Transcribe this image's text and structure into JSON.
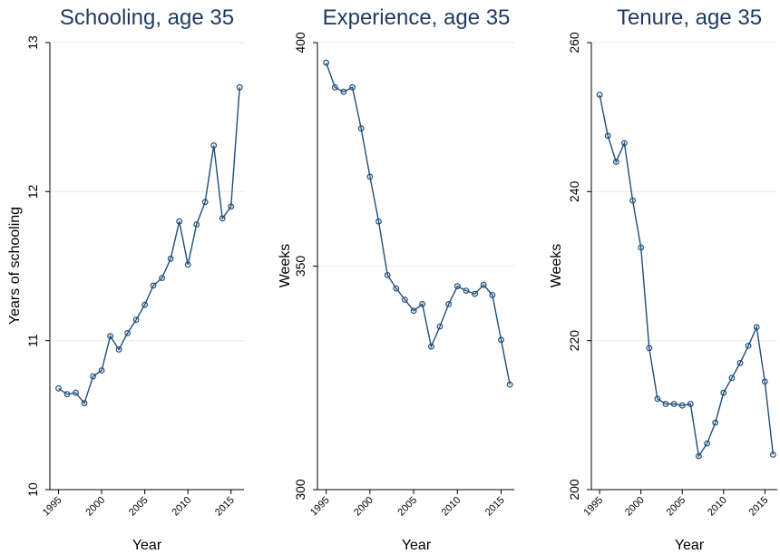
{
  "chart_data": [
    {
      "type": "line",
      "title": "Schooling, age 35",
      "xlabel": "Year",
      "ylabel": "Years of schooling",
      "xlim": [
        1994,
        2016.5
      ],
      "ylim": [
        10,
        13
      ],
      "xticks": [
        1995,
        2000,
        2005,
        2010,
        2015
      ],
      "yticks": [
        10,
        11,
        12,
        13
      ],
      "grid": true,
      "x": [
        1995,
        1996,
        1997,
        1998,
        1999,
        2000,
        2001,
        2002,
        2003,
        2004,
        2005,
        2006,
        2007,
        2008,
        2009,
        2010,
        2011,
        2012,
        2013,
        2014,
        2015,
        2016
      ],
      "values": [
        10.68,
        10.64,
        10.65,
        10.58,
        10.76,
        10.8,
        11.03,
        10.94,
        11.05,
        11.14,
        11.24,
        11.37,
        11.42,
        11.55,
        11.8,
        11.51,
        11.78,
        11.93,
        12.31,
        11.82,
        11.9,
        12.7
      ]
    },
    {
      "type": "line",
      "title": "Experience, age 35",
      "xlabel": "Year",
      "ylabel": "Weeks",
      "xlim": [
        1994,
        2016.5
      ],
      "ylim": [
        300,
        400
      ],
      "xticks": [
        1995,
        2000,
        2005,
        2010,
        2015
      ],
      "yticks": [
        300,
        350,
        400
      ],
      "grid": true,
      "x": [
        1995,
        1996,
        1997,
        1998,
        1999,
        2000,
        2001,
        2002,
        2003,
        2004,
        2005,
        2006,
        2007,
        2008,
        2009,
        2010,
        2011,
        2012,
        2013,
        2014,
        2015,
        2016
      ],
      "values": [
        395.5,
        390.0,
        389.0,
        390.0,
        380.8,
        370.0,
        360.0,
        348.0,
        345.0,
        342.5,
        340.0,
        341.5,
        332.0,
        336.5,
        341.5,
        345.5,
        344.5,
        343.8,
        345.8,
        343.5,
        333.5,
        323.5
      ]
    },
    {
      "type": "line",
      "title": "Tenure, age 35",
      "xlabel": "Year",
      "ylabel": "Weeks",
      "xlim": [
        1994,
        2016.5
      ],
      "ylim": [
        200,
        260
      ],
      "xticks": [
        1995,
        2000,
        2005,
        2010,
        2015
      ],
      "yticks": [
        200,
        220,
        240,
        260
      ],
      "grid": true,
      "x": [
        1995,
        1996,
        1997,
        1998,
        1999,
        2000,
        2001,
        2002,
        2003,
        2004,
        2005,
        2006,
        2007,
        2008,
        2009,
        2010,
        2011,
        2012,
        2013,
        2014,
        2015,
        2016
      ],
      "values": [
        253.0,
        247.5,
        244.0,
        246.5,
        238.8,
        232.5,
        219.0,
        212.2,
        211.5,
        211.5,
        211.3,
        211.5,
        204.5,
        206.2,
        209.0,
        213.0,
        215.0,
        217.0,
        219.3,
        221.8,
        214.5,
        204.7
      ]
    }
  ],
  "colors": {
    "title": "#1f3b5f",
    "series": "#1f4e79",
    "grid": "#eaeaea",
    "axis": "#000000"
  }
}
